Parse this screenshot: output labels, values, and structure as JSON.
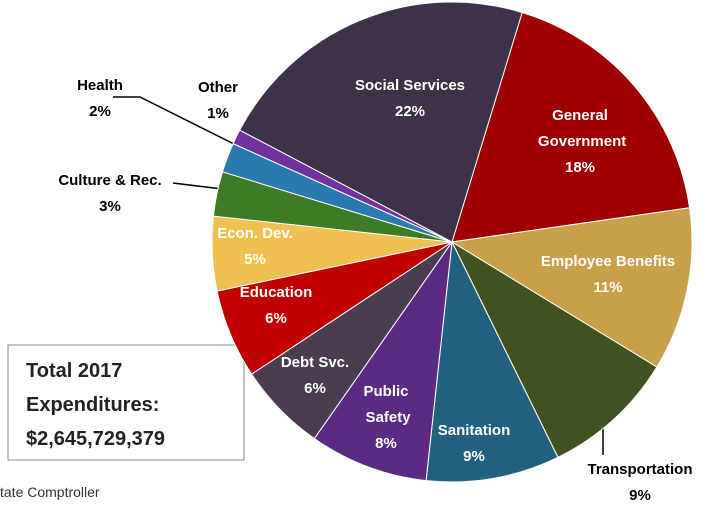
{
  "chart_data": {
    "type": "pie",
    "categories": [
      "General Government",
      "Employee Benefits",
      "Transportation",
      "Sanitation",
      "Public Safety",
      "Debt Svc.",
      "Education",
      "Econ. Dev.",
      "Culture & Rec.",
      "Health",
      "Other",
      "Social Services"
    ],
    "values": [
      18,
      11,
      9,
      9,
      8,
      6,
      6,
      5,
      3,
      2,
      1,
      22
    ],
    "value_labels": [
      "18%",
      "11%",
      "9%",
      "9%",
      "8%",
      "6%",
      "6%",
      "5%",
      "3%",
      "2%",
      "1%",
      "22%"
    ],
    "colors": [
      "#a00000",
      "#c9a04a",
      "#3f5220",
      "#22607f",
      "#5b2a83",
      "#4b3d51",
      "#c00000",
      "#f0c050",
      "#3f7a25",
      "#2a7ab0",
      "#7030a0",
      "#3d3247"
    ],
    "annotation": [
      "Total 2017",
      "Expenditures:",
      "$2,645,729,379"
    ],
    "source": "tate Comptroller"
  }
}
